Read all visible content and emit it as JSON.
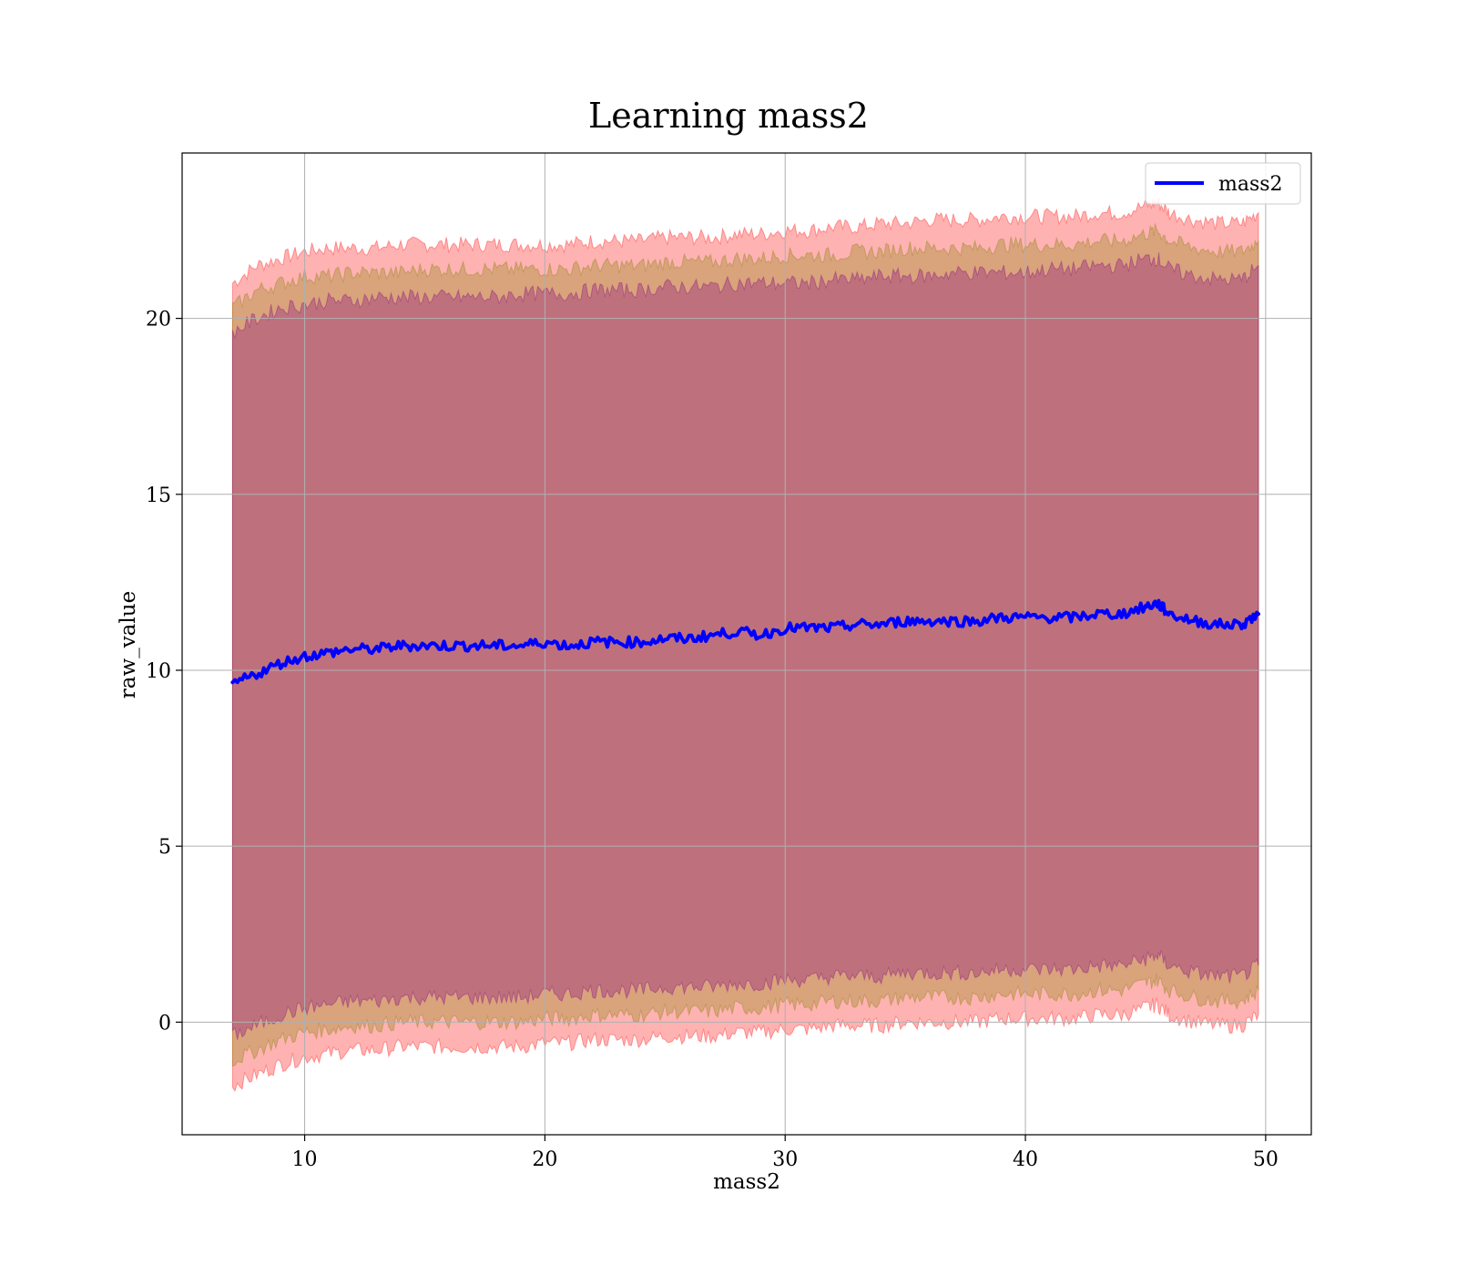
{
  "chart_data": {
    "type": "line",
    "title": "Learning mass2",
    "xlabel": "mass2",
    "ylabel": "raw_value",
    "xlim": [
      4.9,
      51.9
    ],
    "ylim": [
      -3.2,
      24.7
    ],
    "xticks": [
      10,
      20,
      30,
      40,
      50
    ],
    "yticks": [
      0,
      5,
      10,
      15,
      20
    ],
    "grid": true,
    "legend_position": "top-right",
    "x": [
      7,
      8,
      9,
      10,
      11,
      12,
      13,
      14,
      15,
      16,
      17,
      18,
      19,
      20,
      21,
      22,
      23,
      24,
      25,
      26,
      27,
      28,
      29,
      30,
      31,
      32,
      33,
      34,
      35,
      36,
      37,
      38,
      39,
      40,
      41,
      42,
      43,
      44,
      45,
      45.5,
      46,
      47,
      48,
      49,
      49.7
    ],
    "series": [
      {
        "name": "mass2",
        "color": "#0000ff",
        "values": [
          9.6,
          9.9,
          10.2,
          10.4,
          10.5,
          10.6,
          10.6,
          10.7,
          10.7,
          10.7,
          10.7,
          10.7,
          10.7,
          10.8,
          10.7,
          10.8,
          10.8,
          10.8,
          10.9,
          10.9,
          11.0,
          11.1,
          11.0,
          11.2,
          11.2,
          11.2,
          11.3,
          11.3,
          11.4,
          11.4,
          11.4,
          11.4,
          11.5,
          11.5,
          11.5,
          11.5,
          11.6,
          11.6,
          11.8,
          11.9,
          11.6,
          11.4,
          11.3,
          11.3,
          11.6
        ]
      }
    ],
    "bands": [
      {
        "color": "#ff0000",
        "opacity": 0.3,
        "upper": [
          21.0,
          21.5,
          21.7,
          21.9,
          22.0,
          22.0,
          22.0,
          22.1,
          22.1,
          22.1,
          22.1,
          22.1,
          22.1,
          22.1,
          22.1,
          22.2,
          22.2,
          22.2,
          22.3,
          22.3,
          22.3,
          22.4,
          22.4,
          22.5,
          22.5,
          22.6,
          22.6,
          22.7,
          22.7,
          22.8,
          22.8,
          22.8,
          22.9,
          22.9,
          22.9,
          22.9,
          23.0,
          23.0,
          23.2,
          23.3,
          23.0,
          22.8,
          22.7,
          22.7,
          23.0
        ],
        "lower": [
          -1.8,
          -1.5,
          -1.2,
          -1.0,
          -0.9,
          -0.8,
          -0.8,
          -0.7,
          -0.7,
          -0.7,
          -0.7,
          -0.7,
          -0.7,
          -0.6,
          -0.6,
          -0.5,
          -0.5,
          -0.5,
          -0.4,
          -0.4,
          -0.4,
          -0.3,
          -0.3,
          -0.2,
          -0.2,
          -0.1,
          -0.1,
          -0.1,
          0.0,
          0.0,
          0.0,
          0.0,
          0.1,
          0.1,
          0.1,
          0.1,
          0.2,
          0.2,
          0.4,
          0.5,
          0.2,
          0.0,
          -0.1,
          -0.1,
          0.2
        ]
      },
      {
        "color": "#808000",
        "opacity": 0.3,
        "upper": [
          20.3,
          20.8,
          21.0,
          21.2,
          21.2,
          21.3,
          21.3,
          21.3,
          21.4,
          21.4,
          21.4,
          21.4,
          21.4,
          21.4,
          21.4,
          21.5,
          21.5,
          21.5,
          21.6,
          21.6,
          21.6,
          21.7,
          21.7,
          21.8,
          21.8,
          21.8,
          21.9,
          21.9,
          22.0,
          22.0,
          22.0,
          22.0,
          22.1,
          22.1,
          22.1,
          22.1,
          22.2,
          22.2,
          22.4,
          22.5,
          22.2,
          22.0,
          21.9,
          21.9,
          22.2
        ],
        "lower": [
          -1.1,
          -0.8,
          -0.5,
          -0.3,
          -0.2,
          -0.1,
          -0.1,
          0.0,
          0.0,
          0.0,
          0.0,
          0.0,
          0.0,
          0.1,
          0.1,
          0.2,
          0.2,
          0.2,
          0.3,
          0.3,
          0.3,
          0.4,
          0.4,
          0.5,
          0.5,
          0.6,
          0.6,
          0.6,
          0.7,
          0.7,
          0.7,
          0.7,
          0.8,
          0.8,
          0.8,
          0.8,
          0.9,
          0.9,
          1.1,
          1.2,
          0.9,
          0.7,
          0.6,
          0.6,
          0.9
        ]
      },
      {
        "color": "#800080",
        "opacity": 0.3,
        "upper": [
          19.6,
          20.0,
          20.3,
          20.4,
          20.5,
          20.5,
          20.6,
          20.6,
          20.6,
          20.6,
          20.6,
          20.6,
          20.7,
          20.7,
          20.7,
          20.8,
          20.8,
          20.8,
          20.9,
          20.9,
          20.9,
          21.0,
          21.0,
          21.0,
          21.0,
          21.1,
          21.1,
          21.2,
          21.2,
          21.2,
          21.3,
          21.3,
          21.3,
          21.3,
          21.4,
          21.4,
          21.5,
          21.5,
          21.7,
          21.7,
          21.4,
          21.2,
          21.1,
          21.1,
          21.5
        ],
        "lower": [
          -0.4,
          -0.1,
          0.2,
          0.4,
          0.5,
          0.6,
          0.6,
          0.7,
          0.7,
          0.7,
          0.7,
          0.7,
          0.7,
          0.8,
          0.8,
          0.9,
          0.9,
          0.9,
          1.0,
          1.0,
          1.0,
          1.1,
          1.1,
          1.2,
          1.2,
          1.3,
          1.3,
          1.3,
          1.4,
          1.4,
          1.4,
          1.4,
          1.5,
          1.5,
          1.5,
          1.5,
          1.6,
          1.6,
          1.8,
          1.9,
          1.6,
          1.4,
          1.3,
          1.3,
          1.6
        ]
      }
    ]
  }
}
